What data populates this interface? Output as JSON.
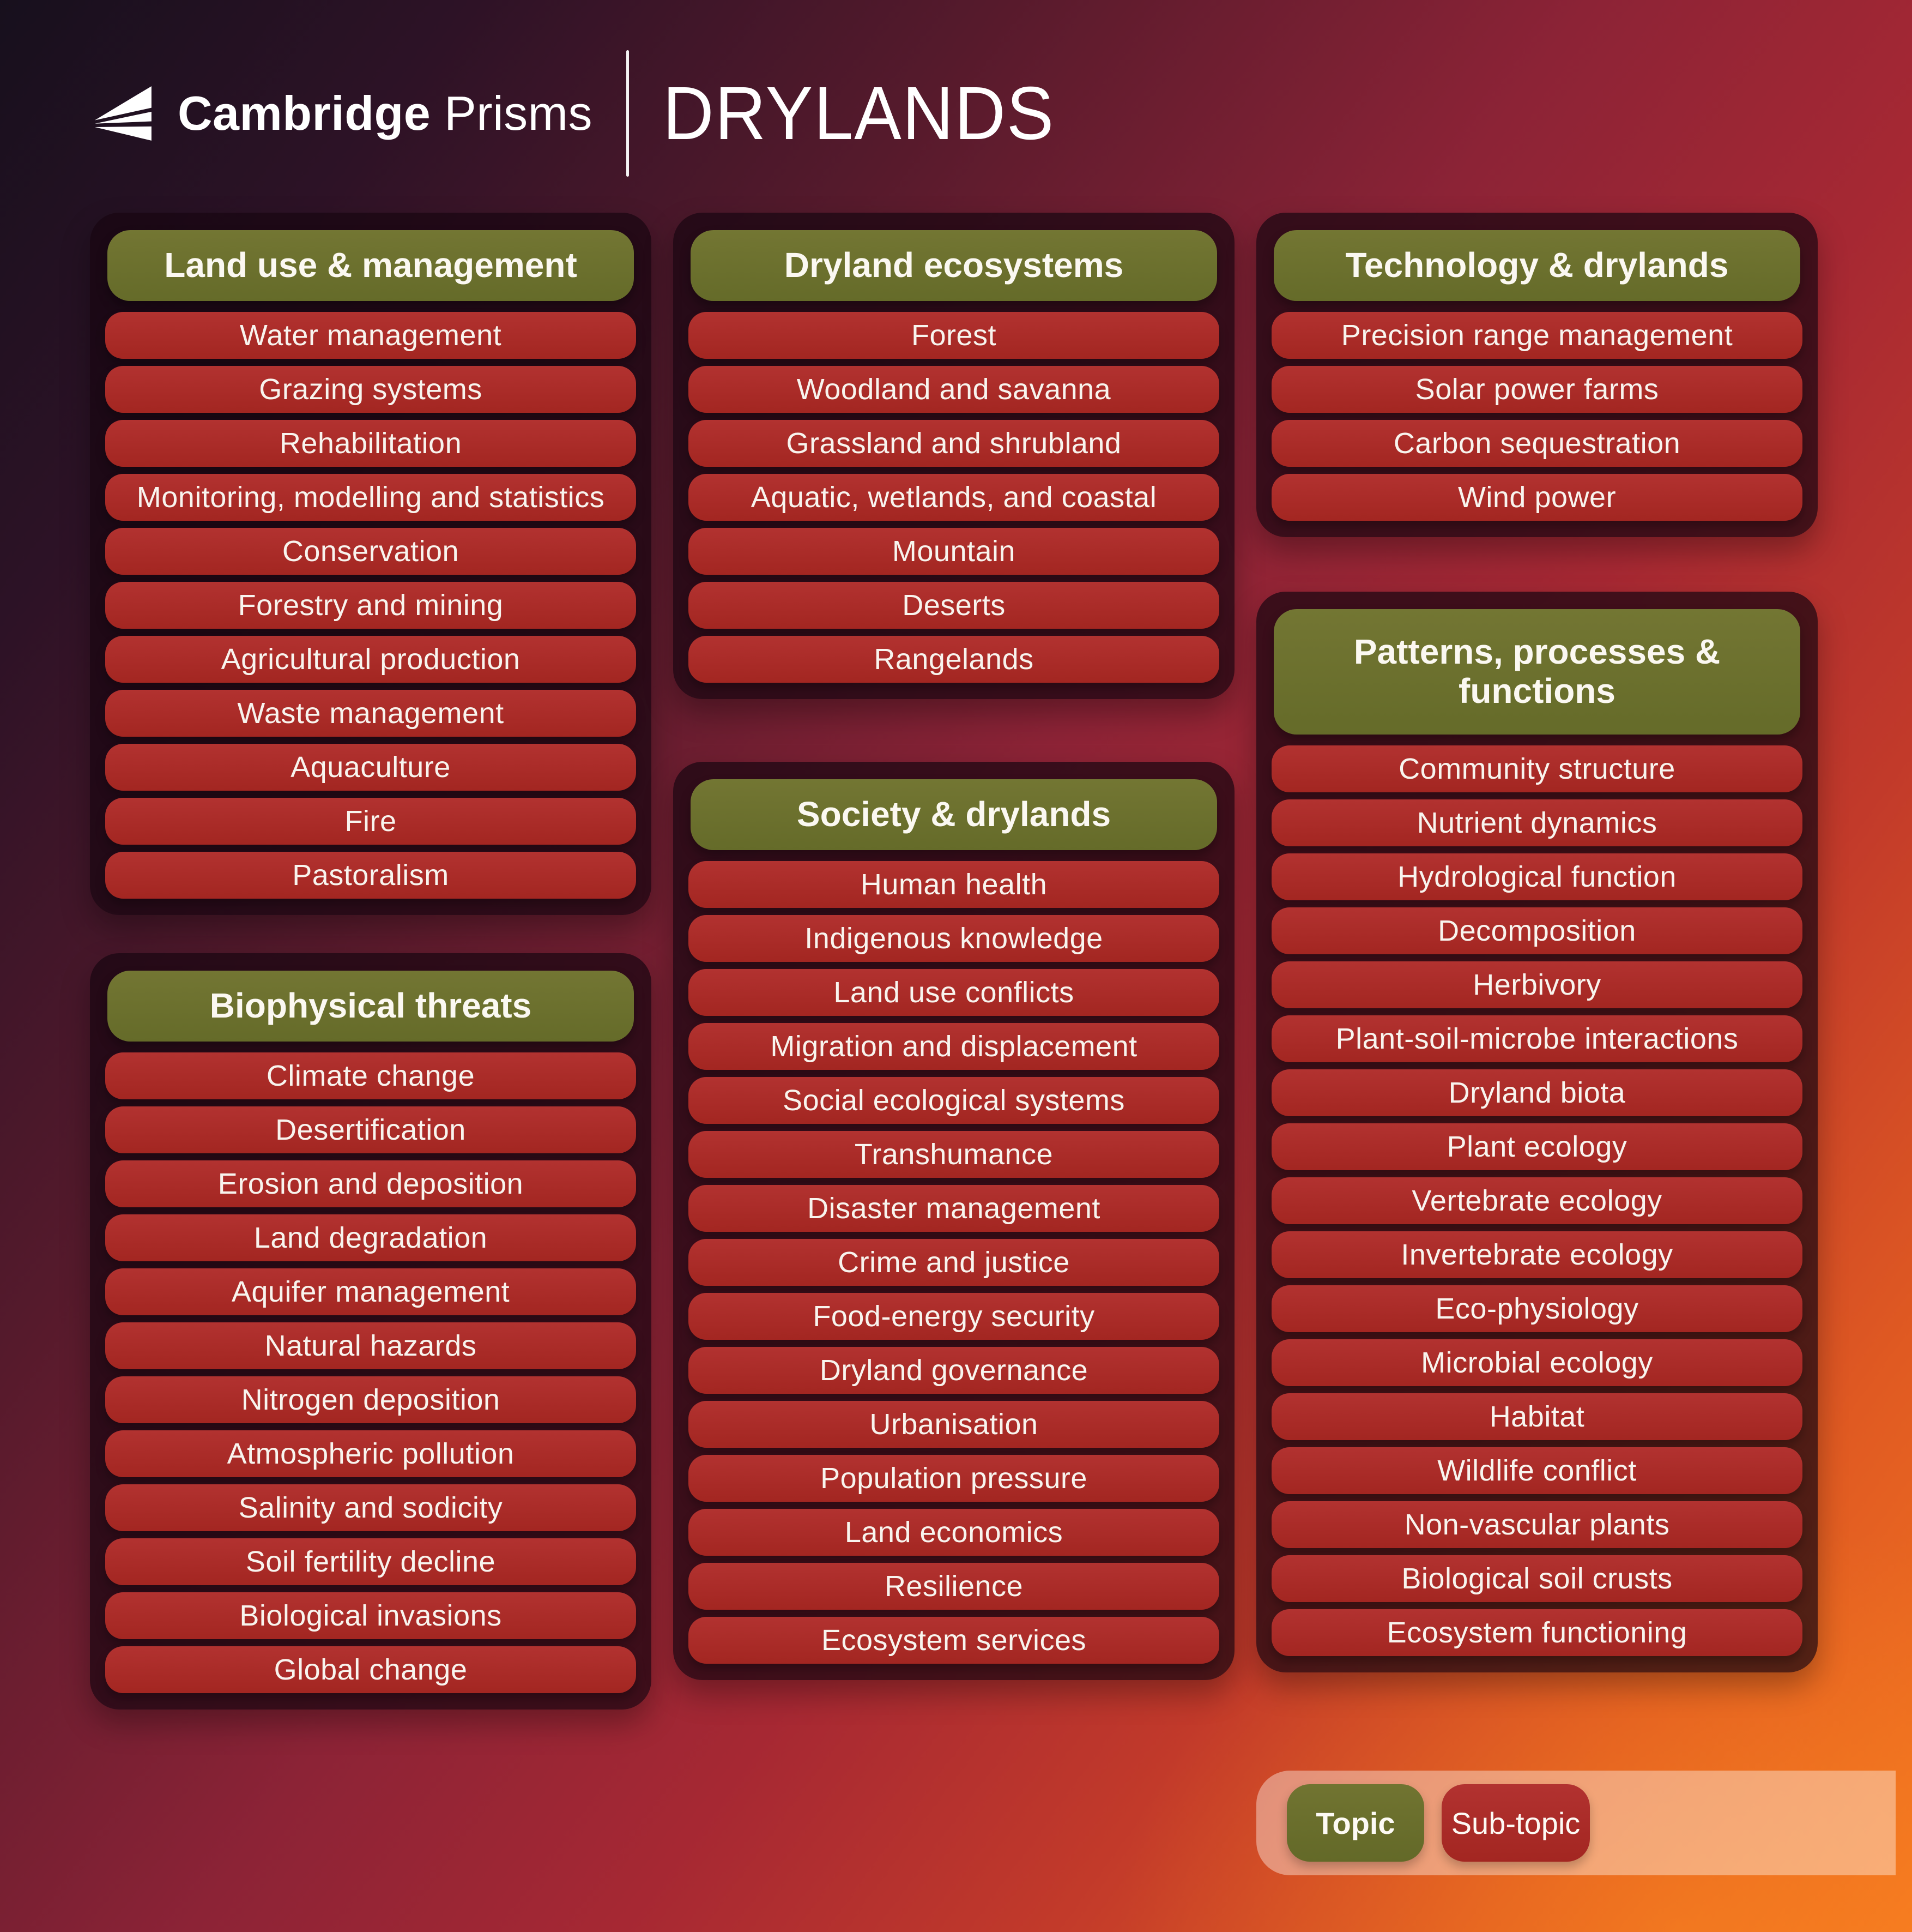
{
  "header": {
    "brand_bold": "Cambridge",
    "brand_light": "Prisms",
    "title": "DRYLANDS"
  },
  "colors": {
    "topic_green": "#6b7030",
    "subtopic_red": "#a92a26",
    "panel_overlay": "#1d0a14",
    "legend_band": "#f3a673",
    "background_top_left": "#17101d",
    "background_top_right": "#8c2341",
    "background_bottom_left": "#a32a44",
    "background_bottom_right": "#f47620",
    "text": "#f8f4ee"
  },
  "panels": [
    {
      "topic": "Land use & management",
      "subtopics": [
        "Water management",
        "Grazing systems",
        "Rehabilitation",
        "Monitoring, modelling and statistics",
        "Conservation",
        "Forestry and mining",
        "Agricultural production",
        "Waste management",
        "Aquaculture",
        "Fire",
        "Pastoralism"
      ]
    },
    {
      "topic": "Biophysical threats",
      "subtopics": [
        "Climate change",
        "Desertification",
        "Erosion and deposition",
        "Land degradation",
        "Aquifer management",
        "Natural hazards",
        "Nitrogen deposition",
        "Atmospheric pollution",
        "Salinity and sodicity",
        "Soil fertility decline",
        "Biological invasions",
        "Global change"
      ]
    },
    {
      "topic": "Dryland ecosystems",
      "subtopics": [
        "Forest",
        "Woodland and savanna",
        "Grassland and shrubland",
        "Aquatic, wetlands, and coastal",
        "Mountain",
        "Deserts",
        "Rangelands"
      ]
    },
    {
      "topic": "Society & drylands",
      "subtopics": [
        "Human health",
        "Indigenous knowledge",
        "Land use conflicts",
        "Migration and displacement",
        "Social ecological systems",
        "Transhumance",
        "Disaster management",
        "Crime and justice",
        "Food-energy security",
        "Dryland governance",
        "Urbanisation",
        "Population pressure",
        "Land economics",
        "Resilience",
        "Ecosystem services"
      ]
    },
    {
      "topic": "Technology & drylands",
      "subtopics": [
        "Precision range management",
        "Solar power farms",
        "Carbon sequestration",
        "Wind power"
      ]
    },
    {
      "topic": "Patterns, processes & functions",
      "subtopics": [
        "Community structure",
        "Nutrient dynamics",
        "Hydrological function",
        "Decomposition",
        "Herbivory",
        "Plant-soil-microbe interactions",
        "Dryland biota",
        "Plant ecology",
        "Vertebrate ecology",
        "Invertebrate ecology",
        "Eco-physiology",
        "Microbial ecology",
        "Habitat",
        "Wildlife conflict",
        "Non-vascular plants",
        "Biological soil crusts",
        "Ecosystem functioning"
      ]
    }
  ],
  "legend": {
    "topic_label": "Topic",
    "subtopic_label": "Sub-topic"
  }
}
